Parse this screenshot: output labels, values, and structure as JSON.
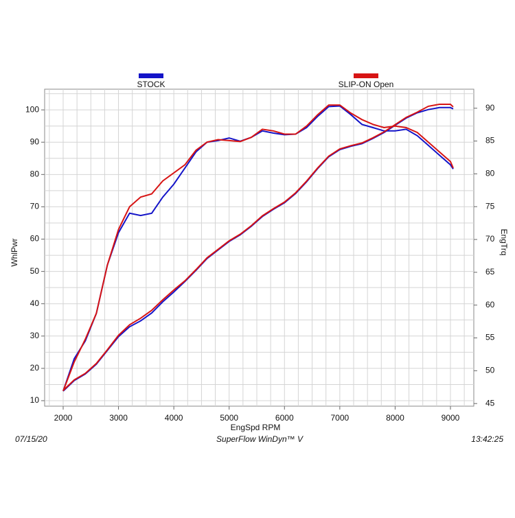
{
  "chart_data": {
    "type": "line",
    "y_label": "WhlPwr",
    "y2_label": "EngTrq",
    "x_label": "EngSpd  RPM",
    "footer": {
      "date": "07/15/20",
      "software": "SuperFlow WinDyn™ V",
      "time": "13:42:25"
    },
    "x": [
      2000,
      2200,
      2400,
      2600,
      2800,
      3000,
      3200,
      3400,
      3600,
      3800,
      4000,
      4200,
      4400,
      4600,
      4800,
      5000,
      5200,
      5400,
      5600,
      5800,
      6000,
      6200,
      6400,
      6600,
      6800,
      7000,
      7200,
      7400,
      7600,
      7800,
      8000,
      8200,
      8400,
      8600,
      8800,
      9000,
      9050
    ],
    "series": [
      {
        "name": "STOCK",
        "color": "#1414c8",
        "values": [
          13,
          23,
          28.5,
          37,
          52,
          62,
          68,
          67.3,
          68,
          73,
          77,
          82,
          87,
          90,
          90.5,
          91.3,
          90.3,
          91.5,
          93.5,
          92.8,
          92.3,
          92.5,
          94.5,
          98,
          101,
          101.2,
          98.5,
          95.5,
          94.5,
          93.5,
          93.5,
          94,
          92,
          89,
          86,
          83,
          81.7
        ],
        "y2_values": [
          46.9,
          48.5,
          49.5,
          51,
          53.1,
          55.2,
          56.7,
          57.6,
          58.8,
          60.5,
          62,
          63.6,
          65.3,
          67.1,
          68.4,
          69.7,
          70.7,
          72,
          73.5,
          74.6,
          75.6,
          77,
          78.8,
          80.8,
          82.6,
          83.7,
          84.2,
          84.6,
          85.4,
          86.3,
          87.4,
          88.5,
          89.3,
          89.8,
          90.1,
          90.1,
          89.9
        ]
      },
      {
        "name": "SLIP-ON Open",
        "color": "#d71414",
        "values": [
          13,
          22,
          29,
          37,
          52,
          63,
          70,
          73,
          74,
          78,
          80.5,
          83,
          87.5,
          90,
          90.8,
          90.5,
          90.2,
          91.5,
          94,
          93.5,
          92.5,
          92.5,
          95,
          98.5,
          101.5,
          101.5,
          99,
          97,
          95.5,
          94.5,
          95,
          94.5,
          93,
          90,
          87,
          84,
          82
        ],
        "y2_values": [
          47,
          48.6,
          49.6,
          51.1,
          53.2,
          55.4,
          57,
          58,
          59.2,
          60.8,
          62.3,
          63.7,
          65.4,
          67.2,
          68.5,
          69.8,
          70.8,
          72.1,
          73.6,
          74.7,
          75.7,
          77.1,
          78.9,
          80.9,
          82.7,
          83.8,
          84.3,
          84.7,
          85.5,
          86.4,
          87.5,
          88.6,
          89.4,
          90.3,
          90.6,
          90.6,
          90.2
        ]
      }
    ],
    "xlim": [
      1665,
      9422
    ],
    "xticks": [
      2000,
      3000,
      4000,
      5000,
      6000,
      7000,
      8000,
      9000
    ],
    "ylim": [
      8.3,
      106.4
    ],
    "yticks": [
      10,
      20,
      30,
      40,
      50,
      60,
      70,
      80,
      90,
      100
    ],
    "y2lim": [
      44.6,
      92.9
    ],
    "y2ticks": [
      45,
      50,
      55,
      60,
      65,
      70,
      75,
      80,
      85,
      90
    ],
    "minor_grid": {
      "x": 250,
      "y": 5
    }
  }
}
